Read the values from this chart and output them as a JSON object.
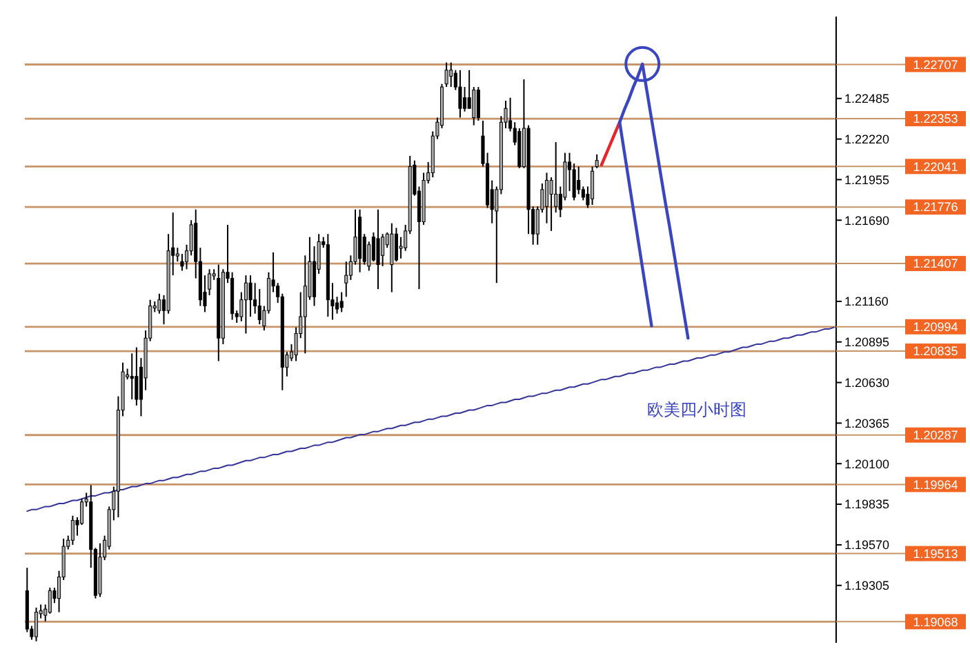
{
  "chart_data": {
    "type": "candlestick",
    "annotations": [
      "欧美四小时图"
    ],
    "tick_labels": "y",
    "ylim": [
      1.1893,
      1.2302
    ],
    "yticks": [
      1.22485,
      {
        "value": 1.2222,
        "label": "1.22220"
      },
      1.21955,
      {
        "value": 1.2169,
        "label": "1.21690"
      },
      {
        "value": 1.2116,
        "label": "1.21160"
      },
      1.20895,
      {
        "value": 1.2063,
        "label": "1.20630"
      },
      1.20365,
      {
        "value": 1.201,
        "label": "1.20100"
      },
      1.19835,
      {
        "value": 1.1957,
        "label": "1.19570"
      },
      1.19305
    ],
    "categories": [
      null,
      null,
      null,
      null,
      null,
      null,
      null,
      null,
      null,
      null,
      null,
      null,
      null,
      null,
      null,
      null,
      null,
      null,
      null,
      null,
      null,
      null,
      null,
      null,
      null,
      null,
      null,
      null,
      null,
      null,
      null,
      null,
      null,
      null,
      null,
      null,
      null,
      null,
      null,
      null,
      null,
      null,
      null,
      null,
      null,
      null,
      null,
      null,
      null,
      null,
      null,
      null,
      null,
      null,
      null,
      null,
      null,
      null,
      null,
      null,
      null,
      null,
      null,
      null,
      null,
      null,
      null,
      null,
      null,
      null,
      null,
      null,
      null,
      null,
      null,
      null,
      null,
      null,
      null,
      null,
      null,
      null,
      null,
      null,
      null,
      null,
      null,
      null,
      null,
      null,
      null,
      null,
      null,
      null,
      null,
      null,
      null,
      null,
      null,
      null,
      null,
      null,
      null,
      null,
      null,
      null,
      null,
      null,
      null,
      null,
      null,
      null,
      null,
      null,
      null,
      null,
      null,
      null,
      null,
      null,
      null,
      null,
      null,
      null,
      null,
      null,
      null,
      null,
      null,
      null,
      null,
      null,
      null,
      null,
      null,
      null,
      null,
      null,
      null,
      null,
      null,
      null,
      null,
      null,
      null,
      null,
      null,
      null,
      null,
      null,
      null,
      null,
      null,
      null,
      null,
      null,
      null,
      null,
      null,
      null,
      null,
      null,
      null,
      null,
      null,
      null,
      null,
      null,
      null,
      null,
      null,
      null,
      null,
      null,
      null,
      null,
      null,
      null
    ],
    "ohlc": [
      [
        1.1927,
        1.1942,
        1.19,
        1.1902
      ],
      [
        1.1902,
        1.1904,
        1.1895,
        1.1897
      ],
      [
        1.1897,
        1.1916,
        1.1894,
        1.1913
      ],
      [
        1.1912,
        1.1918,
        1.1909,
        1.1914
      ],
      [
        1.1911,
        1.1918,
        1.1907,
        1.1915
      ],
      [
        1.1913,
        1.1929,
        1.1912,
        1.1927
      ],
      [
        1.1927,
        1.1929,
        1.1919,
        1.1922
      ],
      [
        1.1922,
        1.194,
        1.1913,
        1.1936
      ],
      [
        1.1936,
        1.1961,
        1.1934,
        1.1956
      ],
      [
        1.1956,
        1.1963,
        1.1954,
        1.196
      ],
      [
        1.196,
        1.1976,
        1.1957,
        1.1973
      ],
      [
        1.1973,
        1.1975,
        1.1963,
        1.197
      ],
      [
        1.1971,
        1.1987,
        1.197,
        1.1985
      ],
      [
        1.1985,
        1.1991,
        1.1982,
        1.1987
      ],
      [
        1.1985,
        1.1996,
        1.1942,
        1.1954
      ],
      [
        1.1954,
        1.1955,
        1.1922,
        1.1924
      ],
      [
        1.1925,
        1.1958,
        1.1923,
        1.1949
      ],
      [
        1.1949,
        1.1963,
        1.1947,
        1.196
      ],
      [
        1.1956,
        1.1982,
        1.1954,
        1.198
      ],
      [
        1.198,
        1.1995,
        1.1973,
        1.1992
      ],
      [
        1.1992,
        1.2054,
        1.1975,
        1.2045
      ],
      [
        1.2045,
        1.2076,
        1.2041,
        1.207
      ],
      [
        1.2067,
        1.2072,
        1.2065,
        1.2068
      ],
      [
        1.2067,
        1.2082,
        1.2052,
        1.2066
      ],
      [
        1.2067,
        1.2086,
        1.2048,
        1.2052
      ],
      [
        1.2073,
        1.2079,
        1.2041,
        1.2052
      ],
      [
        1.2066,
        1.2097,
        1.2058,
        1.2092
      ],
      [
        1.2092,
        1.2117,
        1.209,
        1.2113
      ],
      [
        1.2112,
        1.2116,
        1.2109,
        1.2113
      ],
      [
        1.211,
        1.2121,
        1.2108,
        1.2117
      ],
      [
        1.2117,
        1.212,
        1.2101,
        1.211
      ],
      [
        1.211,
        1.216,
        1.2108,
        1.2149
      ],
      [
        1.2151,
        1.2174,
        1.2133,
        1.2146
      ],
      [
        1.2146,
        1.2151,
        1.2142,
        1.2147
      ],
      [
        1.2142,
        1.2147,
        1.2136,
        1.2139
      ],
      [
        1.2142,
        1.2153,
        1.2137,
        1.2149
      ],
      [
        1.2149,
        1.2169,
        1.2146,
        1.2166
      ],
      [
        1.2167,
        1.2176,
        1.2131,
        1.2142
      ],
      [
        1.2142,
        1.2151,
        1.2113,
        1.2117
      ],
      [
        1.2122,
        1.2133,
        1.2109,
        1.2113
      ],
      [
        1.2124,
        1.2137,
        1.212,
        1.2134
      ],
      [
        1.2133,
        1.2137,
        1.213,
        1.2134
      ],
      [
        1.2131,
        1.214,
        1.2077,
        1.2092
      ],
      [
        1.2092,
        1.2137,
        1.2088,
        1.2135
      ],
      [
        1.2135,
        1.2166,
        1.2128,
        1.2131
      ],
      [
        1.2131,
        1.2135,
        1.2104,
        1.2108
      ],
      [
        1.2108,
        1.211,
        1.2102,
        1.2106
      ],
      [
        1.2106,
        1.2122,
        1.2103,
        1.2117
      ],
      [
        1.2117,
        1.2133,
        1.2095,
        1.2128
      ],
      [
        1.2128,
        1.2133,
        1.2106,
        1.2117
      ],
      [
        1.2117,
        1.2128,
        1.2108,
        1.2113
      ],
      [
        1.2113,
        1.2124,
        1.2101,
        1.2104
      ],
      [
        1.21,
        1.2113,
        1.2097,
        1.211
      ],
      [
        1.211,
        1.2135,
        1.2108,
        1.2131
      ],
      [
        1.213,
        1.2148,
        1.2122,
        1.2126
      ],
      [
        1.2126,
        1.2128,
        1.2115,
        1.2119
      ],
      [
        1.2119,
        1.2121,
        1.2058,
        1.2073
      ],
      [
        1.2073,
        1.2083,
        1.2067,
        1.2081
      ],
      [
        1.2079,
        1.2088,
        1.2077,
        1.2083
      ],
      [
        1.2081,
        1.2099,
        1.2077,
        1.2095
      ],
      [
        1.2095,
        1.2122,
        1.2092,
        1.2106
      ],
      [
        1.2106,
        1.2146,
        1.2082,
        1.2126
      ],
      [
        1.2119,
        1.2158,
        1.2117,
        1.2142
      ],
      [
        1.2142,
        1.2152,
        1.2113,
        1.2119
      ],
      [
        1.2137,
        1.216,
        1.2134,
        1.2155
      ],
      [
        1.2155,
        1.2158,
        1.2151,
        1.2153
      ],
      [
        1.2153,
        1.216,
        1.2106,
        1.2117
      ],
      [
        1.2117,
        1.2128,
        1.2104,
        1.2113
      ],
      [
        1.2115,
        1.2119,
        1.2108,
        1.2111
      ],
      [
        1.2116,
        1.2122,
        1.2109,
        1.2112
      ],
      [
        1.2128,
        1.2142,
        1.2119,
        1.2133
      ],
      [
        1.2133,
        1.2146,
        1.213,
        1.2142
      ],
      [
        1.2142,
        1.2176,
        1.214,
        1.2158
      ],
      [
        1.2171,
        1.2176,
        1.2135,
        1.2144
      ],
      [
        1.2158,
        1.216,
        1.214,
        1.2142
      ],
      [
        1.2139,
        1.2155,
        1.2136,
        1.2153
      ],
      [
        1.2158,
        1.2161,
        1.2142,
        1.2143
      ],
      [
        1.2157,
        1.2176,
        1.2124,
        1.214
      ],
      [
        1.2146,
        1.216,
        1.2139,
        1.2158
      ],
      [
        1.2153,
        1.2161,
        1.2151,
        1.216
      ],
      [
        1.214,
        1.2167,
        1.2122,
        1.216
      ],
      [
        1.216,
        1.2164,
        1.2142,
        1.2143
      ],
      [
        1.2151,
        1.2158,
        1.2144,
        1.2152
      ],
      [
        1.2151,
        1.2166,
        1.2149,
        1.2162
      ],
      [
        1.2162,
        1.2211,
        1.216,
        1.2204
      ],
      [
        1.2205,
        1.2208,
        1.2185,
        1.2186
      ],
      [
        1.2188,
        1.2191,
        1.2124,
        1.2168
      ],
      [
        1.2168,
        1.22,
        1.2166,
        1.2195
      ],
      [
        1.2195,
        1.2207,
        1.2193,
        1.22
      ],
      [
        1.22,
        1.2227,
        1.2197,
        1.2224
      ],
      [
        1.2224,
        1.2236,
        1.2222,
        1.2233
      ],
      [
        1.2231,
        1.2258,
        1.2229,
        1.2256
      ],
      [
        1.2258,
        1.2272,
        1.2256,
        1.2267
      ],
      [
        1.2263,
        1.2272,
        1.2256,
        1.2267
      ],
      [
        1.2265,
        1.2267,
        1.2254,
        1.2256
      ],
      [
        1.2256,
        1.2267,
        1.2236,
        1.2242
      ],
      [
        1.2249,
        1.2256,
        1.224,
        1.2242
      ],
      [
        1.2249,
        1.2267,
        1.2242,
        1.2242
      ],
      [
        1.2236,
        1.2256,
        1.2231,
        1.2254
      ],
      [
        1.2254,
        1.2256,
        1.2234,
        1.2236
      ],
      [
        1.2224,
        1.2234,
        1.2204,
        1.2206
      ],
      [
        1.2206,
        1.2213,
        1.2177,
        1.2179
      ],
      [
        1.2189,
        1.2195,
        1.2167,
        1.2176
      ],
      [
        1.2175,
        1.2191,
        1.2128,
        1.2189
      ],
      [
        1.2189,
        1.2237,
        1.2186,
        1.2233
      ],
      [
        1.2233,
        1.2247,
        1.2229,
        1.2242
      ],
      [
        1.2234,
        1.2249,
        1.2227,
        1.2229
      ],
      [
        1.2229,
        1.2233,
        1.2218,
        1.222
      ],
      [
        1.2227,
        1.2229,
        1.2203,
        1.2204
      ],
      [
        1.2204,
        1.2261,
        1.2203,
        1.2229
      ],
      [
        1.2229,
        1.2231,
        1.216,
        1.2176
      ],
      [
        1.2176,
        1.2178,
        1.2153,
        1.216
      ],
      [
        1.216,
        1.2178,
        1.2153,
        1.2176
      ],
      [
        1.2176,
        1.2193,
        1.2174,
        1.2189
      ],
      [
        1.2178,
        1.22,
        1.2167,
        1.2195
      ],
      [
        1.2186,
        1.2197,
        1.2162,
        1.2195
      ],
      [
        1.2178,
        1.222,
        1.2174,
        1.2186
      ],
      [
        1.2186,
        1.2191,
        1.2171,
        1.2176
      ],
      [
        1.2184,
        1.2213,
        1.2182,
        1.2207
      ],
      [
        1.2207,
        1.2213,
        1.2188,
        1.2202
      ],
      [
        1.2202,
        1.2206,
        1.2182,
        1.2184
      ],
      [
        1.2195,
        1.2204,
        1.2186,
        1.2189
      ],
      [
        1.2189,
        1.2191,
        1.2182,
        1.2184
      ],
      [
        1.2186,
        1.2191,
        1.2177,
        1.2179
      ],
      [
        1.2183,
        1.2204,
        1.2179,
        1.2201
      ],
      [
        1.2204,
        1.2212,
        1.2203,
        1.2208
      ],
      null,
      null,
      null,
      null,
      null,
      null,
      null,
      null,
      null,
      null,
      null,
      null,
      null,
      null,
      null,
      null,
      null,
      null,
      null,
      null,
      null,
      null,
      null,
      null,
      null,
      null,
      null,
      null,
      null,
      null,
      null,
      null,
      null,
      null,
      null,
      null,
      null,
      null,
      null,
      null,
      null,
      null,
      null,
      null,
      null,
      null,
      null,
      null,
      null,
      null,
      null,
      null
    ],
    "series": [
      {
        "type": "line",
        "color": "#333399",
        "values": [
          1.1979,
          1.198,
          1.198,
          1.1981,
          1.1982,
          1.1982,
          1.1983,
          1.1984,
          1.1984,
          1.1985,
          1.1986,
          1.1986,
          1.1987,
          1.1988,
          1.1989,
          1.1989,
          1.199,
          1.1991,
          1.1991,
          1.1992,
          1.1993,
          1.1993,
          1.1994,
          1.1995,
          1.1995,
          1.1996,
          1.1997,
          1.1997,
          1.1998,
          1.1999,
          1.1999,
          1.2,
          1.2001,
          1.2001,
          1.2002,
          1.2003,
          1.2003,
          1.2004,
          1.2005,
          1.2005,
          1.2006,
          1.2007,
          1.2007,
          1.2008,
          1.2009,
          1.2009,
          1.201,
          1.2011,
          1.2012,
          1.2012,
          1.2013,
          1.2014,
          1.2014,
          1.2015,
          1.2016,
          1.2016,
          1.2017,
          1.2018,
          1.2018,
          1.2019,
          1.202,
          1.202,
          1.2021,
          1.2022,
          1.2022,
          1.2023,
          1.2024,
          1.2024,
          1.2025,
          1.2026,
          1.2027,
          1.2027,
          1.2028,
          1.2029,
          1.2029,
          1.203,
          1.2031,
          1.2031,
          1.2032,
          1.2033,
          1.2033,
          1.2034,
          1.2035,
          1.2035,
          1.2036,
          1.2037,
          1.2037,
          1.2038,
          1.2039,
          1.2039,
          1.204,
          1.2041,
          1.2041,
          1.2042,
          1.2043,
          1.2043,
          1.2044,
          1.2045,
          1.2045,
          1.2046,
          1.2047,
          1.2048,
          1.2048,
          1.2049,
          1.205,
          1.205,
          1.2051,
          1.2052,
          1.2052,
          1.2053,
          1.2054,
          1.2054,
          1.2055,
          1.2056,
          1.2056,
          1.2057,
          1.2058,
          1.2058,
          1.2059,
          1.206,
          1.206,
          1.2061,
          1.2062,
          1.2062,
          1.2063,
          1.2064,
          1.2065,
          1.2065,
          1.2066,
          1.2067,
          1.2067,
          1.2068,
          1.2069,
          1.2069,
          1.207,
          1.2071,
          1.2071,
          1.2072,
          1.2073,
          1.2073,
          1.2074,
          1.2075,
          1.2075,
          1.2076,
          1.2077,
          1.2077,
          1.2078,
          1.2079,
          1.2079,
          1.208,
          1.2081,
          1.2081,
          1.2082,
          1.2083,
          1.2083,
          1.2084,
          1.2085,
          1.2086,
          1.2086,
          1.2087,
          1.2088,
          1.2088,
          1.2089,
          1.209,
          1.209,
          1.2091,
          1.2092,
          1.2092,
          1.2093,
          1.2094,
          1.2094,
          1.2095,
          1.2096,
          1.2096,
          1.2097,
          1.2098,
          1.2098,
          1.2099
        ]
      },
      {
        "type": "line",
        "color": "#e8262a",
        "values": [
          null,
          null,
          null,
          null,
          null,
          null,
          null,
          null,
          null,
          null,
          null,
          null,
          null,
          null,
          null,
          null,
          null,
          null,
          null,
          null,
          null,
          null,
          null,
          null,
          null,
          null,
          null,
          null,
          null,
          null,
          null,
          null,
          null,
          null,
          null,
          null,
          null,
          null,
          null,
          null,
          null,
          null,
          null,
          null,
          null,
          null,
          null,
          null,
          null,
          null,
          null,
          null,
          null,
          null,
          null,
          null,
          null,
          null,
          null,
          null,
          null,
          null,
          null,
          null,
          null,
          null,
          null,
          null,
          null,
          null,
          null,
          null,
          null,
          null,
          null,
          null,
          null,
          null,
          null,
          null,
          null,
          null,
          null,
          null,
          null,
          null,
          null,
          null,
          null,
          null,
          null,
          null,
          null,
          null,
          null,
          null,
          null,
          null,
          null,
          null,
          null,
          null,
          null,
          null,
          null,
          null,
          null,
          null,
          null,
          null,
          null,
          null,
          null,
          null,
          null,
          null,
          null,
          null,
          null,
          null,
          null,
          null,
          null,
          null,
          null,
          null,
          1.2205,
          1.2212,
          1.2219,
          1.2226,
          1.2233,
          null,
          null,
          null,
          null,
          null,
          null,
          null,
          null,
          null,
          null,
          null,
          null,
          null,
          null,
          null,
          null,
          null,
          null,
          null,
          null,
          null,
          null,
          null,
          null,
          null,
          null,
          null,
          null,
          null,
          null,
          null,
          null,
          null,
          null,
          null,
          null,
          null,
          null,
          null,
          null,
          null,
          null,
          null,
          null,
          null,
          null,
          null
        ]
      },
      {
        "type": "line",
        "color": "#3a46c0",
        "values": [
          null,
          null,
          null,
          null,
          null,
          null,
          null,
          null,
          null,
          null,
          null,
          null,
          null,
          null,
          null,
          null,
          null,
          null,
          null,
          null,
          null,
          null,
          null,
          null,
          null,
          null,
          null,
          null,
          null,
          null,
          null,
          null,
          null,
          null,
          null,
          null,
          null,
          null,
          null,
          null,
          null,
          null,
          null,
          null,
          null,
          null,
          null,
          null,
          null,
          null,
          null,
          null,
          null,
          null,
          null,
          null,
          null,
          null,
          null,
          null,
          null,
          null,
          null,
          null,
          null,
          null,
          null,
          null,
          null,
          null,
          null,
          null,
          null,
          null,
          null,
          null,
          null,
          null,
          null,
          null,
          null,
          null,
          null,
          null,
          null,
          null,
          null,
          null,
          null,
          null,
          null,
          null,
          null,
          null,
          null,
          null,
          null,
          null,
          null,
          null,
          null,
          null,
          null,
          null,
          null,
          null,
          null,
          null,
          null,
          null,
          null,
          null,
          null,
          null,
          null,
          null,
          null,
          null,
          null,
          null,
          null,
          null,
          null,
          null,
          null,
          null,
          null,
          null,
          null,
          null,
          1.2233,
          1.2241,
          1.2248,
          1.2256,
          1.2263,
          1.2271,
          1.2253,
          1.2235,
          1.2217,
          1.2199,
          1.2181,
          1.2164,
          1.2146,
          1.2128,
          1.211,
          1.2092,
          null,
          null,
          null,
          null,
          null,
          null,
          null,
          null,
          null,
          null,
          null,
          null,
          null,
          null,
          null,
          null,
          null,
          null,
          null,
          null,
          null,
          null,
          null,
          null,
          null,
          null,
          null,
          null,
          null,
          null,
          null,
          null
        ]
      },
      {
        "type": "line",
        "color": "#3a46c0",
        "values": [
          null,
          null,
          null,
          null,
          null,
          null,
          null,
          null,
          null,
          null,
          null,
          null,
          null,
          null,
          null,
          null,
          null,
          null,
          null,
          null,
          null,
          null,
          null,
          null,
          null,
          null,
          null,
          null,
          null,
          null,
          null,
          null,
          null,
          null,
          null,
          null,
          null,
          null,
          null,
          null,
          null,
          null,
          null,
          null,
          null,
          null,
          null,
          null,
          null,
          null,
          null,
          null,
          null,
          null,
          null,
          null,
          null,
          null,
          null,
          null,
          null,
          null,
          null,
          null,
          null,
          null,
          null,
          null,
          null,
          null,
          null,
          null,
          null,
          null,
          null,
          null,
          null,
          null,
          null,
          null,
          null,
          null,
          null,
          null,
          null,
          null,
          null,
          null,
          null,
          null,
          null,
          null,
          null,
          null,
          null,
          null,
          null,
          null,
          null,
          null,
          null,
          null,
          null,
          null,
          null,
          null,
          null,
          null,
          null,
          null,
          null,
          null,
          null,
          null,
          null,
          null,
          null,
          null,
          null,
          null,
          null,
          null,
          null,
          null,
          null,
          null,
          null,
          null,
          null,
          null,
          1.2233,
          1.2214,
          1.2195,
          1.2176,
          1.2157,
          1.2138,
          1.2119,
          1.21,
          null,
          null,
          null,
          null,
          null,
          null,
          null,
          null,
          null,
          null,
          null,
          null,
          null,
          null,
          null,
          null,
          null,
          null,
          null,
          null,
          null,
          null,
          null,
          null,
          null,
          null,
          null,
          null,
          null,
          null,
          null,
          null,
          null,
          null,
          null,
          null,
          null,
          null,
          null,
          null
        ]
      }
    ],
    "ref_lines": [
      {
        "axis": "y",
        "value": 1.22707,
        "label": "1.22707",
        "color": "#c8946a"
      },
      {
        "axis": "y",
        "value": 1.22353,
        "label": "1.22353",
        "color": "#c8946a"
      },
      {
        "axis": "y",
        "value": 1.22041,
        "label": "1.22041",
        "color": "#c8946a"
      },
      {
        "axis": "y",
        "value": 1.21776,
        "label": "1.21776",
        "color": "#c8946a"
      },
      {
        "axis": "y",
        "value": 1.21407,
        "label": "1.21407",
        "color": "#c8946a"
      },
      {
        "axis": "y",
        "value": 1.20994,
        "label": "1.20994",
        "color": "#c8946a"
      },
      {
        "axis": "y",
        "value": 1.20835,
        "label": "1.20835",
        "color": "#c8946a"
      },
      {
        "axis": "y",
        "value": 1.20287,
        "label": "1.20287",
        "color": "#c8946a"
      },
      {
        "axis": "y",
        "value": 1.19964,
        "label": "1.19964",
        "color": "#c8946a"
      },
      {
        "axis": "y",
        "value": 1.19513,
        "label": "1.19513",
        "color": "#c8946a"
      },
      {
        "axis": "y",
        "value": 1.19068,
        "label": "1.19068",
        "color": "#c8946a"
      }
    ]
  }
}
